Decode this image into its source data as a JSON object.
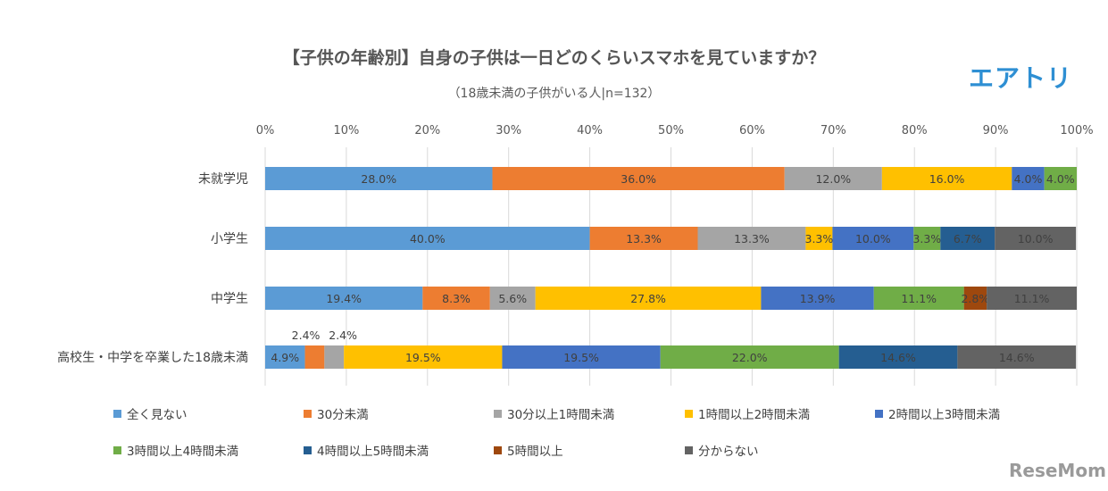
{
  "title": "【子供の年齢別】自身の子供は一日どのくらいスマホを見ていますか？",
  "subtitle": "（18歳未満の子供がいる人|n=132）",
  "logo": "エアトリ",
  "watermark": "ReseMom",
  "chart_data": {
    "type": "bar",
    "orientation": "horizontal",
    "stacked": "100%",
    "title": "【子供の年齢別】自身の子供は一日どのくらいスマホを見ていますか？",
    "subtitle": "（18歳未満の子供がいる人|n=132）",
    "xlim": [
      0,
      100
    ],
    "x_ticks": [
      "0%",
      "10%",
      "20%",
      "30%",
      "40%",
      "50%",
      "60%",
      "70%",
      "80%",
      "90%",
      "100%"
    ],
    "grid": true,
    "legend_position": "bottom",
    "categories": [
      "未就学児",
      "小学生",
      "中学生",
      "高校生・中学を卒業した18歳未満"
    ],
    "series": [
      {
        "name": "全く見ない",
        "color": "#5B9BD5",
        "values": [
          28.0,
          40.0,
          19.4,
          4.9
        ]
      },
      {
        "name": "30分未満",
        "color": "#ED7D31",
        "values": [
          36.0,
          13.3,
          8.3,
          2.4
        ]
      },
      {
        "name": "30分以上1時間未満",
        "color": "#A5A5A5",
        "values": [
          12.0,
          13.3,
          5.6,
          2.4
        ]
      },
      {
        "name": "1時間以上2時間未満",
        "color": "#FFC000",
        "values": [
          16.0,
          3.3,
          27.8,
          19.5
        ]
      },
      {
        "name": "2時間以上3時間未満",
        "color": "#4472C4",
        "values": [
          4.0,
          10.0,
          13.9,
          19.5
        ]
      },
      {
        "name": "3時間以上4時間未満",
        "color": "#70AD47",
        "values": [
          4.0,
          3.3,
          11.1,
          22.0
        ]
      },
      {
        "name": "4時間以上5時間未満",
        "color": "#255E91",
        "values": [
          0,
          6.7,
          0,
          14.6
        ]
      },
      {
        "name": "5時間以上",
        "color": "#9E480E",
        "values": [
          0,
          0,
          2.8,
          0
        ]
      },
      {
        "name": "分からない",
        "color": "#636363",
        "values": [
          0,
          10.0,
          11.1,
          14.6
        ]
      }
    ]
  }
}
